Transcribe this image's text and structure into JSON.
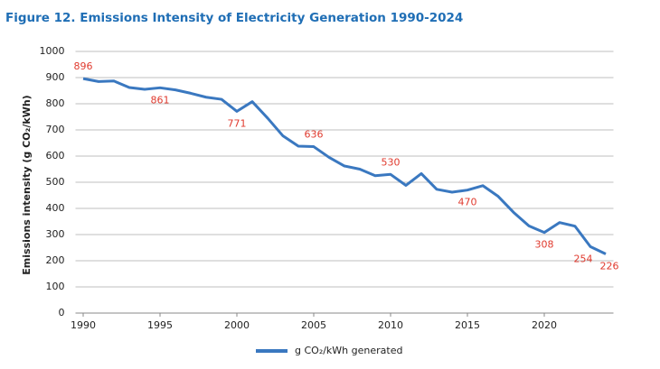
{
  "chart_data": {
    "type": "line",
    "title": "Figure 12. Emissions Intensity of Electricity Generation 1990-2024",
    "y_label": "Emissions intensity (g CO₂/kWh)",
    "x": [
      1990,
      1991,
      1992,
      1993,
      1994,
      1995,
      1996,
      1997,
      1998,
      1999,
      2000,
      2001,
      2002,
      2003,
      2004,
      2005,
      2006,
      2007,
      2008,
      2009,
      2010,
      2011,
      2012,
      2013,
      2014,
      2015,
      2016,
      2017,
      2018,
      2019,
      2020,
      2021,
      2022,
      2023,
      2024
    ],
    "series": [
      {
        "name": "g CO₂/kWh generated",
        "color": "#3a78c0",
        "values": [
          896,
          885,
          887,
          862,
          855,
          861,
          853,
          840,
          825,
          817,
          771,
          808,
          745,
          677,
          638,
          636,
          595,
          562,
          550,
          525,
          530,
          488,
          533,
          473,
          462,
          470,
          487,
          446,
          385,
          333,
          308,
          346,
          332,
          254,
          226
        ],
        "value_labels": [
          "896",
          null,
          null,
          null,
          null,
          "861",
          null,
          null,
          null,
          null,
          "771",
          null,
          null,
          null,
          null,
          "636",
          null,
          null,
          null,
          null,
          "530",
          null,
          null,
          null,
          null,
          "470",
          null,
          null,
          null,
          null,
          "308",
          null,
          null,
          "254",
          "226"
        ]
      }
    ],
    "xlim": [
      1989.5,
      2024.5
    ],
    "xticks": [
      1990,
      1995,
      2000,
      2005,
      2010,
      2015,
      2020
    ],
    "ylim": [
      0,
      1000
    ],
    "yticks": [
      0,
      100,
      200,
      300,
      400,
      500,
      600,
      700,
      800,
      900,
      1000
    ],
    "grid": true,
    "label_color": "#e03a2e"
  }
}
